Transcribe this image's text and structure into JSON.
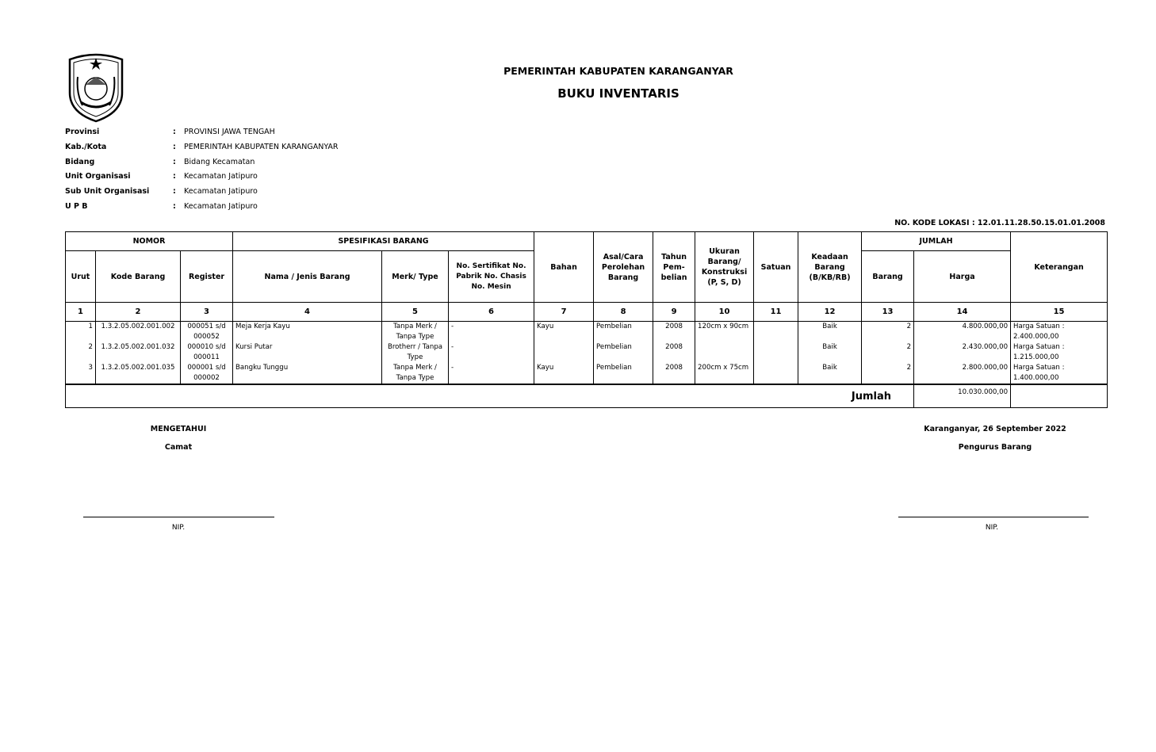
{
  "header": {
    "title": "PEMERINTAH KABUPATEN KARANGANYAR",
    "subtitle": "BUKU INVENTARIS"
  },
  "info": [
    {
      "label": "Provinsi",
      "value": "PROVINSI JAWA TENGAH"
    },
    {
      "label": "Kab./Kota",
      "value": "PEMERINTAH KABUPATEN KARANGANYAR"
    },
    {
      "label": "Bidang",
      "value": "Bidang Kecamatan"
    },
    {
      "label": "Unit Organisasi",
      "value": "Kecamatan Jatipuro"
    },
    {
      "label": "Sub Unit Organisasi",
      "value": "Kecamatan Jatipuro"
    },
    {
      "label": "U P B",
      "value": "Kecamatan Jatipuro"
    }
  ],
  "separator": ":",
  "kode_lokasi": "NO. KODE LOKASI : 12.01.11.28.50.15.01.01.2008",
  "table": {
    "groups": {
      "nomor": "NOMOR",
      "spesifikasi": "SPESIFIKASI BARANG",
      "jumlah": "JUMLAH"
    },
    "headers": [
      "Urut",
      "Kode Barang",
      "Register",
      "Nama / Jenis Barang",
      "Merk/ Type",
      "No. Sertifikat No. Pabrik No. Chasis No. Mesin",
      "Bahan",
      "Asal/Cara Perolehan Barang",
      "Tahun Pem- belian",
      "Ukuran Barang/ Konstruksi (P, S, D)",
      "Satuan",
      "Keadaan Barang (B/KB/RB)",
      "Barang",
      "Harga",
      "Keterangan"
    ],
    "numbers": [
      "1",
      "2",
      "3",
      "4",
      "5",
      "6",
      "7",
      "8",
      "9",
      "10",
      "11",
      "12",
      "13",
      "14",
      "15"
    ],
    "rows": [
      [
        "1",
        "1.3.2.05.002.001.002",
        "000051 s/d 000052",
        "Meja Kerja Kayu",
        "Tanpa Merk / Tanpa Type",
        "-",
        "Kayu",
        "Pembelian",
        "2008",
        "120cm x 90cm",
        "",
        "Baik",
        "2",
        "4.800.000,00",
        "Harga Satuan : 2.400.000,00"
      ],
      [
        "2",
        "1.3.2.05.002.001.032",
        "000010 s/d 000011",
        "Kursi Putar",
        "Brotherr / Tanpa Type",
        "-",
        "",
        "Pembelian",
        "2008",
        "",
        "",
        "Baik",
        "2",
        "2.430.000,00",
        "Harga Satuan : 1.215.000,00"
      ],
      [
        "3",
        "1.3.2.05.002.001.035",
        "000001 s/d 000002",
        "Bangku Tunggu",
        "Tanpa Merk / Tanpa Type",
        "-",
        "Kayu",
        "Pembelian",
        "2008",
        "200cm x 75cm",
        "",
        "Baik",
        "2",
        "2.800.000,00",
        "Harga Satuan : 1.400.000,00"
      ]
    ],
    "total_label": "Jumlah",
    "total_value": "10.030.000,00"
  },
  "signatures": {
    "left": {
      "heading": "MENGETAHUI",
      "role": "Camat",
      "nip": "NIP."
    },
    "right": {
      "heading": "Karanganyar, 26 September 2022",
      "role": "Pengurus Barang",
      "nip": "NIP."
    }
  }
}
